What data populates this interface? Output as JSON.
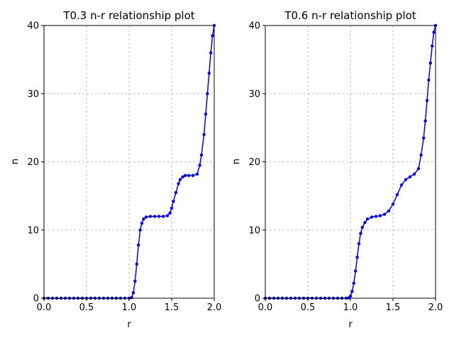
{
  "chart_data": [
    {
      "type": "scatter",
      "title": "T0.3 n-r relationship plot",
      "xlabel": "r",
      "ylabel": "n",
      "xlim": [
        0.0,
        2.0
      ],
      "ylim": [
        0,
        40
      ],
      "xticks": [
        "0.0",
        "0.5",
        "1.0",
        "1.5",
        "2.0"
      ],
      "yticks": [
        "0",
        "10",
        "20",
        "30",
        "40"
      ],
      "grid": true,
      "marker_color": "#0000ff",
      "line_color": "#0000ff",
      "series": [
        {
          "x": [
            0.0,
            0.05,
            0.1,
            0.15,
            0.2,
            0.25,
            0.3,
            0.35,
            0.4,
            0.45,
            0.5,
            0.55,
            0.6,
            0.65,
            0.7,
            0.75,
            0.8,
            0.85,
            0.9,
            0.95,
            1.0,
            1.03,
            1.05,
            1.07,
            1.09,
            1.11,
            1.13,
            1.15,
            1.17,
            1.2,
            1.25,
            1.3,
            1.35,
            1.4,
            1.45,
            1.48,
            1.5,
            1.52,
            1.55,
            1.58,
            1.6,
            1.63,
            1.66,
            1.7,
            1.75,
            1.8,
            1.83,
            1.85,
            1.88,
            1.9,
            1.92,
            1.94,
            1.96,
            1.98,
            2.0
          ],
          "y": [
            0,
            0,
            0,
            0,
            0,
            0,
            0,
            0,
            0,
            0,
            0,
            0,
            0,
            0,
            0,
            0,
            0,
            0,
            0,
            0,
            0,
            0.1,
            0.8,
            2.5,
            5.0,
            7.8,
            10.0,
            11.0,
            11.6,
            11.9,
            12.0,
            12.0,
            12.0,
            12.0,
            12.1,
            12.5,
            13.2,
            14.2,
            15.5,
            16.8,
            17.4,
            17.8,
            18.0,
            18.0,
            18.0,
            18.2,
            19.5,
            21.0,
            24.0,
            27.0,
            30.0,
            33.0,
            36.0,
            38.5,
            40.0
          ]
        }
      ]
    },
    {
      "type": "scatter",
      "title": "T0.6 n-r relationship plot",
      "xlabel": "r",
      "ylabel": "n",
      "xlim": [
        0.0,
        2.0
      ],
      "ylim": [
        0,
        40
      ],
      "xticks": [
        "0.0",
        "0.5",
        "1.0",
        "1.5",
        "2.0"
      ],
      "yticks": [
        "0",
        "10",
        "20",
        "30",
        "40"
      ],
      "grid": true,
      "marker_color": "#0000ff",
      "line_color": "#0000ff",
      "series": [
        {
          "x": [
            0.0,
            0.05,
            0.1,
            0.15,
            0.2,
            0.25,
            0.3,
            0.35,
            0.4,
            0.45,
            0.5,
            0.55,
            0.6,
            0.65,
            0.7,
            0.75,
            0.8,
            0.85,
            0.9,
            0.95,
            0.98,
            1.0,
            1.02,
            1.04,
            1.06,
            1.08,
            1.1,
            1.12,
            1.14,
            1.17,
            1.2,
            1.25,
            1.3,
            1.35,
            1.4,
            1.45,
            1.5,
            1.55,
            1.6,
            1.65,
            1.7,
            1.75,
            1.8,
            1.83,
            1.86,
            1.88,
            1.9,
            1.92,
            1.94,
            1.96,
            1.98,
            2.0
          ],
          "y": [
            0,
            0,
            0,
            0,
            0,
            0,
            0,
            0,
            0,
            0,
            0,
            0,
            0,
            0,
            0,
            0,
            0,
            0,
            0,
            0,
            0.05,
            0.3,
            1.0,
            2.2,
            4.0,
            6.0,
            8.0,
            9.5,
            10.4,
            11.1,
            11.6,
            11.9,
            12.0,
            12.1,
            12.3,
            12.8,
            13.8,
            15.2,
            16.6,
            17.4,
            17.8,
            18.2,
            19.0,
            21.0,
            23.5,
            26.0,
            29.0,
            32.0,
            34.5,
            37.0,
            39.0,
            40.0
          ]
        }
      ]
    }
  ]
}
